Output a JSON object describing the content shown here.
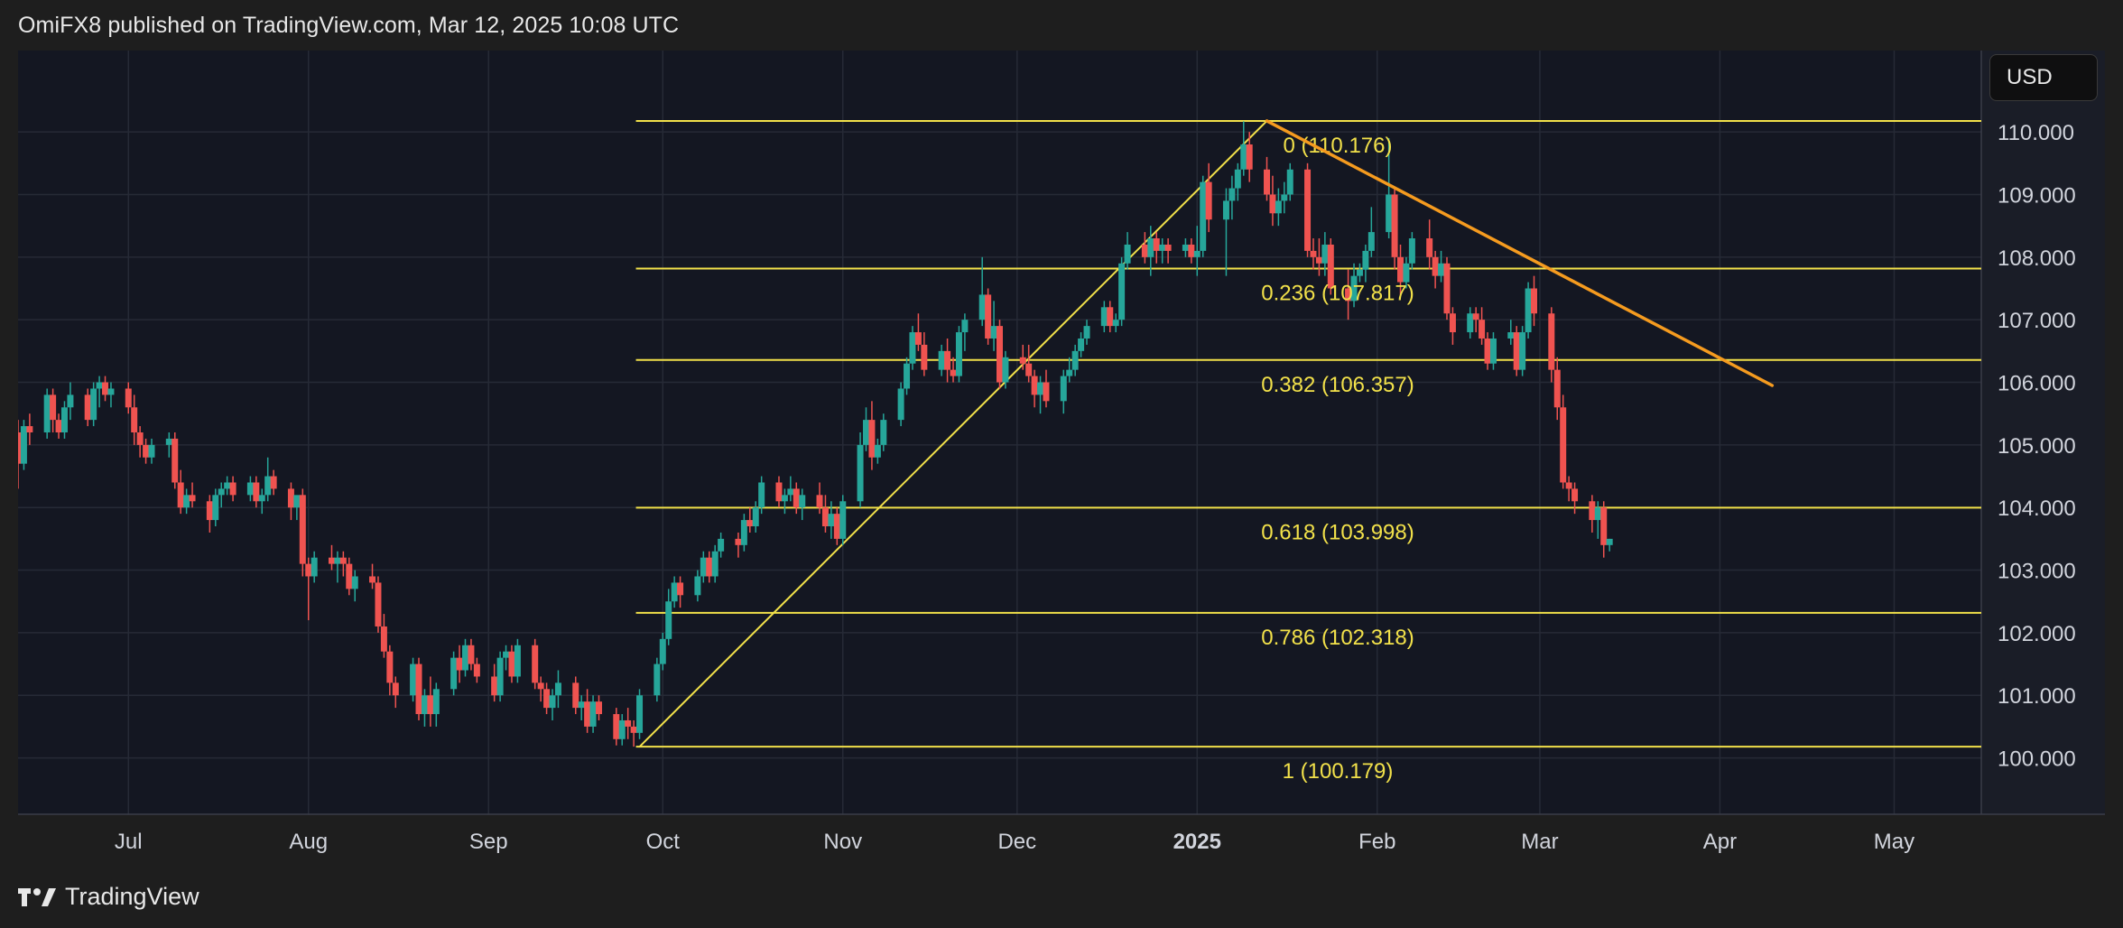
{
  "header": {
    "text": "OmiFX8 published on TradingView.com, Mar 12, 2025 10:08 UTC"
  },
  "footer": {
    "brand": "TradingView"
  },
  "currency": "USD",
  "chart_data": {
    "type": "candlestick",
    "x_ticks": [
      {
        "label": "Jul",
        "date": "2024-07-01"
      },
      {
        "label": "Aug",
        "date": "2024-08-01"
      },
      {
        "label": "Sep",
        "date": "2024-09-01"
      },
      {
        "label": "Oct",
        "date": "2024-10-01"
      },
      {
        "label": "Nov",
        "date": "2024-11-01"
      },
      {
        "label": "Dec",
        "date": "2024-12-01"
      },
      {
        "label": "2025",
        "date": "2025-01-01",
        "bold": true
      },
      {
        "label": "Feb",
        "date": "2025-02-01"
      },
      {
        "label": "Mar",
        "date": "2025-03-01"
      },
      {
        "label": "Apr",
        "date": "2025-04-01"
      },
      {
        "label": "May",
        "date": "2025-05-01"
      }
    ],
    "y_ticks": [
      "100.000",
      "101.000",
      "102.000",
      "103.000",
      "104.000",
      "105.000",
      "106.000",
      "107.000",
      "108.000",
      "109.000",
      "110.000"
    ],
    "ylim": [
      99.1,
      111.3
    ],
    "xlim": [
      "2024-06-12",
      "2025-05-16"
    ],
    "fib_levels": [
      {
        "ratio": "0",
        "value": 110.176,
        "label": "0 (110.176)"
      },
      {
        "ratio": "0.236",
        "value": 107.817,
        "label": "0.236 (107.817)"
      },
      {
        "ratio": "0.382",
        "value": 106.357,
        "label": "0.382 (106.357)"
      },
      {
        "ratio": "0.618",
        "value": 103.998,
        "label": "0.618 (103.998)"
      },
      {
        "ratio": "0.786",
        "value": 102.318,
        "label": "0.786 (102.318)"
      },
      {
        "ratio": "1",
        "value": 100.179,
        "label": "1 (100.179)"
      }
    ],
    "fib_start": {
      "date": "2024-09-27",
      "value": 100.179
    },
    "fib_end": {
      "date": "2025-01-13",
      "value": 110.176
    },
    "trendline": {
      "start": {
        "date": "2025-01-13",
        "value": 110.176
      },
      "end": {
        "date": "2025-04-10",
        "value": 105.95
      }
    },
    "colors": {
      "up": "#26a69a",
      "down": "#ef5350",
      "fib": "#f2e14a",
      "trendline": "#f59b1f",
      "background": "#141722",
      "grid": "#262a36",
      "text": "#d1d4dc"
    },
    "candles": [
      [
        105.2,
        105.4,
        104.3,
        104.7
      ],
      [
        104.7,
        105.4,
        104.6,
        105.3
      ],
      [
        105.3,
        105.5,
        105.0,
        105.2
      ],
      [
        105.2,
        105.9,
        105.1,
        105.8
      ],
      [
        105.8,
        105.9,
        105.2,
        105.4
      ],
      [
        105.4,
        105.5,
        105.1,
        105.2
      ],
      [
        105.2,
        105.7,
        105.1,
        105.6
      ],
      [
        105.6,
        106.0,
        105.4,
        105.8
      ],
      [
        105.8,
        105.9,
        105.3,
        105.4
      ],
      [
        105.4,
        106.0,
        105.3,
        105.9
      ],
      [
        105.9,
        106.1,
        105.6,
        106.0
      ],
      [
        106.0,
        106.1,
        105.7,
        105.8
      ],
      [
        105.8,
        106.0,
        105.6,
        105.9
      ],
      [
        105.9,
        106.0,
        105.5,
        105.6
      ],
      [
        105.6,
        105.8,
        105.0,
        105.2
      ],
      [
        105.2,
        105.3,
        104.8,
        105.0
      ],
      [
        105.0,
        105.1,
        104.7,
        104.8
      ],
      [
        104.8,
        105.1,
        104.7,
        105.0
      ],
      [
        105.0,
        105.2,
        104.8,
        105.1
      ],
      [
        105.1,
        105.2,
        104.3,
        104.4
      ],
      [
        104.4,
        104.6,
        103.9,
        104.0
      ],
      [
        104.0,
        104.3,
        103.9,
        104.2
      ],
      [
        104.2,
        104.4,
        104.0,
        104.1
      ],
      [
        104.1,
        104.2,
        103.6,
        103.8
      ],
      [
        103.8,
        104.3,
        103.7,
        104.2
      ],
      [
        104.2,
        104.4,
        104.0,
        104.3
      ],
      [
        104.3,
        104.5,
        104.2,
        104.4
      ],
      [
        104.4,
        104.5,
        104.1,
        104.2
      ],
      [
        104.2,
        104.5,
        104.1,
        104.4
      ],
      [
        104.4,
        104.5,
        104.0,
        104.1
      ],
      [
        104.1,
        104.3,
        103.9,
        104.2
      ],
      [
        104.2,
        104.8,
        104.1,
        104.5
      ],
      [
        104.5,
        104.6,
        104.2,
        104.3
      ],
      [
        104.3,
        104.4,
        103.8,
        104.0
      ],
      [
        104.0,
        104.1,
        103.8,
        104.2
      ],
      [
        104.2,
        104.3,
        102.9,
        103.1
      ],
      [
        103.1,
        103.2,
        102.2,
        102.9
      ],
      [
        102.9,
        103.3,
        102.8,
        103.2
      ],
      [
        103.2,
        103.4,
        103.0,
        103.1
      ],
      [
        103.1,
        103.3,
        102.8,
        103.2
      ],
      [
        103.2,
        103.3,
        102.9,
        103.1
      ],
      [
        103.1,
        103.2,
        102.6,
        102.7
      ],
      [
        102.7,
        103.0,
        102.5,
        102.9
      ],
      [
        102.9,
        103.1,
        102.7,
        102.8
      ],
      [
        102.8,
        102.9,
        102.0,
        102.1
      ],
      [
        102.1,
        102.3,
        101.6,
        101.7
      ],
      [
        101.7,
        101.8,
        101.0,
        101.2
      ],
      [
        101.2,
        101.3,
        100.8,
        101.0
      ],
      [
        101.0,
        101.6,
        100.9,
        101.5
      ],
      [
        101.5,
        101.6,
        100.6,
        100.7
      ],
      [
        100.7,
        101.1,
        100.5,
        101.0
      ],
      [
        101.0,
        101.3,
        100.5,
        100.7
      ],
      [
        100.7,
        101.2,
        100.5,
        101.1
      ],
      [
        101.1,
        101.7,
        101.0,
        101.6
      ],
      [
        101.6,
        101.8,
        101.2,
        101.4
      ],
      [
        101.4,
        101.9,
        101.3,
        101.8
      ],
      [
        101.8,
        101.9,
        101.4,
        101.5
      ],
      [
        101.5,
        101.6,
        101.2,
        101.3
      ],
      [
        101.3,
        101.5,
        100.9,
        101.0
      ],
      [
        101.0,
        101.7,
        100.9,
        101.6
      ],
      [
        101.6,
        101.8,
        101.4,
        101.7
      ],
      [
        101.7,
        101.8,
        101.2,
        101.3
      ],
      [
        101.3,
        101.9,
        101.2,
        101.8
      ],
      [
        101.8,
        101.9,
        101.1,
        101.2
      ],
      [
        101.2,
        101.3,
        100.9,
        101.1
      ],
      [
        101.1,
        101.2,
        100.7,
        100.8
      ],
      [
        100.8,
        101.1,
        100.6,
        101.0
      ],
      [
        101.0,
        101.4,
        100.8,
        101.2
      ],
      [
        101.2,
        101.3,
        100.7,
        100.8
      ],
      [
        100.8,
        101.0,
        100.6,
        100.9
      ],
      [
        100.9,
        101.1,
        100.4,
        100.5
      ],
      [
        100.5,
        101.0,
        100.4,
        100.9
      ],
      [
        100.9,
        101.0,
        100.6,
        100.7
      ],
      [
        100.7,
        100.8,
        100.2,
        100.3
      ],
      [
        100.3,
        100.7,
        100.2,
        100.6
      ],
      [
        100.6,
        100.8,
        100.3,
        100.5
      ],
      [
        100.5,
        100.6,
        100.18,
        100.4
      ],
      [
        100.4,
        101.1,
        100.3,
        101.0
      ],
      [
        101.0,
        101.6,
        100.9,
        101.5
      ],
      [
        101.5,
        102.0,
        101.4,
        101.9
      ],
      [
        101.9,
        102.7,
        101.8,
        102.5
      ],
      [
        102.5,
        102.9,
        102.4,
        102.8
      ],
      [
        102.8,
        102.9,
        102.4,
        102.6
      ],
      [
        102.6,
        103.0,
        102.5,
        102.9
      ],
      [
        102.9,
        103.3,
        102.8,
        103.2
      ],
      [
        103.2,
        103.3,
        102.8,
        102.9
      ],
      [
        102.9,
        103.4,
        102.8,
        103.3
      ],
      [
        103.3,
        103.6,
        103.2,
        103.5
      ],
      [
        103.5,
        103.6,
        103.2,
        103.4
      ],
      [
        103.4,
        103.9,
        103.3,
        103.8
      ],
      [
        103.8,
        104.0,
        103.6,
        103.7
      ],
      [
        103.7,
        104.1,
        103.6,
        104.0
      ],
      [
        104.0,
        104.5,
        103.9,
        104.4
      ],
      [
        104.4,
        104.5,
        104.0,
        104.1
      ],
      [
        104.1,
        104.3,
        103.9,
        104.2
      ],
      [
        104.2,
        104.5,
        104.1,
        104.3
      ],
      [
        104.3,
        104.4,
        103.9,
        104.0
      ],
      [
        104.0,
        104.3,
        103.8,
        104.2
      ],
      [
        104.2,
        104.4,
        103.9,
        104.0
      ],
      [
        104.0,
        104.2,
        103.6,
        103.7
      ],
      [
        103.7,
        104.1,
        103.5,
        103.9
      ],
      [
        103.9,
        104.0,
        103.4,
        103.5
      ],
      [
        103.5,
        104.2,
        103.4,
        104.1
      ],
      [
        104.1,
        105.2,
        104.0,
        105.0
      ],
      [
        105.0,
        105.6,
        104.9,
        105.4
      ],
      [
        105.4,
        105.7,
        104.6,
        104.8
      ],
      [
        104.8,
        105.1,
        104.7,
        105.0
      ],
      [
        105.0,
        105.5,
        104.9,
        105.4
      ],
      [
        105.4,
        106.0,
        105.3,
        105.9
      ],
      [
        105.9,
        106.4,
        105.8,
        106.3
      ],
      [
        106.3,
        106.9,
        106.2,
        106.8
      ],
      [
        106.8,
        107.1,
        106.5,
        106.6
      ],
      [
        106.6,
        106.8,
        106.1,
        106.2
      ],
      [
        106.2,
        106.6,
        106.1,
        106.5
      ],
      [
        106.5,
        106.7,
        106.0,
        106.2
      ],
      [
        106.2,
        106.4,
        106.0,
        106.1
      ],
      [
        106.1,
        106.9,
        106.0,
        106.8
      ],
      [
        106.8,
        107.1,
        106.5,
        107.0
      ],
      [
        107.0,
        108.0,
        106.9,
        107.4
      ],
      [
        107.4,
        107.5,
        106.6,
        106.7
      ],
      [
        106.7,
        107.3,
        106.5,
        106.9
      ],
      [
        106.9,
        107.0,
        105.9,
        106.0
      ],
      [
        106.0,
        106.5,
        105.9,
        106.4
      ],
      [
        106.4,
        106.6,
        106.2,
        106.3
      ],
      [
        106.3,
        106.6,
        106.0,
        106.1
      ],
      [
        106.1,
        106.2,
        105.6,
        105.8
      ],
      [
        105.8,
        106.1,
        105.5,
        106.0
      ],
      [
        106.0,
        106.2,
        105.6,
        105.7
      ],
      [
        105.7,
        106.2,
        105.5,
        106.1
      ],
      [
        106.1,
        106.4,
        106.0,
        106.2
      ],
      [
        106.2,
        106.6,
        106.1,
        106.5
      ],
      [
        106.5,
        106.8,
        106.4,
        106.7
      ],
      [
        106.7,
        107.0,
        106.6,
        106.9
      ],
      [
        106.9,
        107.3,
        106.8,
        107.2
      ],
      [
        107.2,
        107.3,
        106.8,
        106.9
      ],
      [
        106.9,
        107.1,
        106.8,
        107.0
      ],
      [
        107.0,
        108.0,
        106.9,
        107.9
      ],
      [
        107.9,
        108.4,
        107.8,
        108.2
      ],
      [
        108.2,
        108.4,
        107.9,
        108.0
      ],
      [
        108.0,
        108.5,
        107.7,
        108.3
      ],
      [
        108.3,
        108.4,
        107.9,
        108.1
      ],
      [
        108.1,
        108.3,
        107.9,
        108.2
      ],
      [
        108.2,
        108.3,
        107.9,
        108.1
      ],
      [
        108.1,
        108.3,
        108.0,
        108.2
      ],
      [
        108.2,
        108.3,
        107.9,
        108.0
      ],
      [
        108.0,
        108.5,
        107.7,
        108.1
      ],
      [
        108.1,
        109.3,
        108.0,
        109.2
      ],
      [
        109.2,
        109.5,
        108.4,
        108.6
      ],
      [
        108.6,
        109.1,
        107.7,
        108.9
      ],
      [
        108.9,
        109.3,
        108.6,
        109.1
      ],
      [
        109.1,
        109.5,
        108.9,
        109.4
      ],
      [
        109.4,
        110.17,
        109.3,
        109.8
      ],
      [
        109.8,
        110.0,
        109.2,
        109.4
      ],
      [
        109.4,
        109.6,
        108.9,
        109.0
      ],
      [
        109.0,
        109.3,
        108.5,
        108.7
      ],
      [
        108.7,
        109.1,
        108.5,
        108.9
      ],
      [
        108.9,
        109.2,
        108.7,
        109.0
      ],
      [
        109.0,
        109.5,
        108.9,
        109.4
      ],
      [
        109.4,
        109.5,
        108.0,
        108.1
      ],
      [
        108.1,
        108.3,
        107.8,
        108.0
      ],
      [
        108.0,
        108.3,
        107.7,
        107.9
      ],
      [
        107.9,
        108.4,
        107.7,
        108.2
      ],
      [
        108.2,
        108.3,
        107.4,
        107.5
      ],
      [
        107.5,
        107.8,
        107.0,
        107.3
      ],
      [
        107.3,
        107.9,
        107.2,
        107.7
      ],
      [
        107.7,
        107.9,
        107.6,
        107.8
      ],
      [
        107.8,
        108.2,
        107.6,
        108.1
      ],
      [
        108.1,
        108.8,
        108.0,
        108.4
      ],
      [
        108.4,
        109.9,
        108.3,
        109.0
      ],
      [
        109.0,
        109.1,
        107.8,
        108.0
      ],
      [
        108.0,
        108.2,
        107.4,
        107.6
      ],
      [
        107.6,
        108.0,
        107.5,
        107.9
      ],
      [
        107.9,
        108.4,
        107.8,
        108.3
      ],
      [
        108.3,
        108.6,
        107.8,
        108.0
      ],
      [
        108.0,
        108.1,
        107.5,
        107.7
      ],
      [
        107.7,
        108.1,
        107.6,
        107.9
      ],
      [
        107.9,
        108.0,
        107.0,
        107.1
      ],
      [
        107.1,
        107.2,
        106.6,
        106.8
      ],
      [
        106.8,
        107.2,
        106.7,
        107.1
      ],
      [
        107.1,
        107.2,
        106.8,
        107.0
      ],
      [
        107.0,
        107.2,
        106.6,
        106.7
      ],
      [
        106.7,
        106.8,
        106.2,
        106.3
      ],
      [
        106.3,
        106.8,
        106.2,
        106.7
      ],
      [
        106.7,
        107.0,
        106.6,
        106.8
      ],
      [
        106.8,
        106.9,
        106.1,
        106.2
      ],
      [
        106.2,
        106.9,
        106.1,
        106.8
      ],
      [
        106.8,
        107.6,
        106.7,
        107.5
      ],
      [
        107.5,
        107.7,
        106.9,
        107.1
      ],
      [
        107.1,
        107.2,
        106.0,
        106.2
      ],
      [
        106.2,
        106.4,
        105.4,
        105.6
      ],
      [
        105.6,
        105.8,
        104.3,
        104.4
      ],
      [
        104.4,
        104.5,
        104.1,
        104.3
      ],
      [
        104.3,
        104.4,
        103.9,
        104.1
      ],
      [
        104.1,
        104.2,
        103.6,
        103.8
      ],
      [
        103.8,
        104.1,
        103.5,
        104.0
      ],
      [
        104.0,
        104.1,
        103.2,
        103.4
      ],
      [
        103.4,
        103.5,
        103.3,
        103.5
      ]
    ]
  }
}
